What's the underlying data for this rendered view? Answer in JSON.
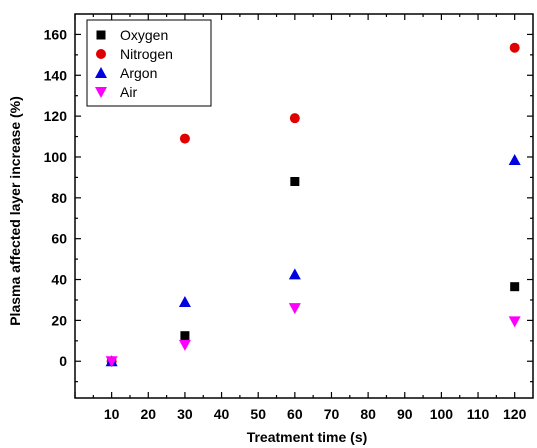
{
  "chart_data": {
    "type": "scatter",
    "xlabel": "Treatment time (s)",
    "ylabel": "Plasma affected layer increase (%)",
    "xlim": [
      0,
      125
    ],
    "ylim": [
      -18,
      170
    ],
    "xticks": [
      10,
      20,
      30,
      40,
      50,
      60,
      70,
      80,
      90,
      100,
      110,
      120
    ],
    "yticks": [
      0,
      20,
      40,
      60,
      80,
      100,
      120,
      140,
      160
    ],
    "legend_position": "top-left",
    "x": [
      10,
      30,
      60,
      120
    ],
    "series": [
      {
        "name": "Oxygen",
        "marker": "square",
        "color": "#000000",
        "values": [
          0,
          12.5,
          88,
          36.5
        ]
      },
      {
        "name": "Nitrogen",
        "marker": "circle",
        "color": "#e00000",
        "values": [
          0,
          109,
          119,
          153.5
        ]
      },
      {
        "name": "Argon",
        "marker": "triangle-up",
        "color": "#0000e0",
        "values": [
          0,
          29,
          42.5,
          98.5
        ]
      },
      {
        "name": "Air",
        "marker": "triangle-down",
        "color": "#ff00ff",
        "values": [
          0,
          8,
          26,
          19.5
        ]
      }
    ]
  }
}
